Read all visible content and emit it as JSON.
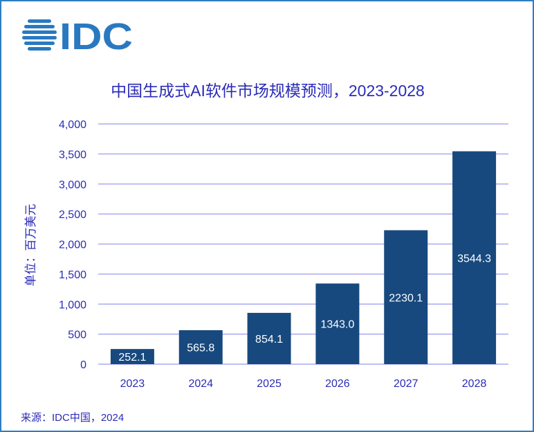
{
  "logo": {
    "text": "IDC",
    "color": "#2a79c0"
  },
  "source": "来源：IDC中国，2024",
  "chart_data": {
    "type": "bar",
    "title": "中国生成式AI软件市场规模预测，2023-2028",
    "ylabel": "单位：百万美元",
    "xlabel": "",
    "categories": [
      "2023",
      "2024",
      "2025",
      "2026",
      "2027",
      "2028"
    ],
    "values": [
      252.1,
      565.8,
      854.1,
      1343.0,
      2230.1,
      3544.3
    ],
    "data_labels": [
      "252.1",
      "565.8",
      "854.1",
      "1343.0",
      "2230.1",
      "3544.3"
    ],
    "ylim": [
      0,
      4000
    ],
    "yticks": [
      0,
      500,
      1000,
      1500,
      2000,
      2500,
      3000,
      3500,
      4000
    ],
    "ytick_labels": [
      "0",
      "500",
      "1,000",
      "1,500",
      "2,000",
      "2,500",
      "3,000",
      "3,500",
      "4,000"
    ],
    "grid": true,
    "legend": "none",
    "colors": {
      "bar": "#17497e",
      "text": "#2b2bb8",
      "grid": "#aaaaf0",
      "label": "#ffffff"
    }
  }
}
